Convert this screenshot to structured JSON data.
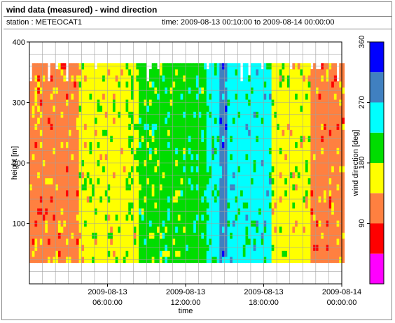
{
  "header": {
    "title": "wind data (measured) - wind direction",
    "station": "station : METEOCAT1",
    "time_range": "time: 2009-08-13 00:10:00 to 2009-08-14 00:00:00"
  },
  "chart_data": {
    "type": "heatmap",
    "title": "wind data (measured) - wind direction",
    "xlabel": "time",
    "ylabel": "height [m]",
    "colorbar_label": "wind direction [deg]",
    "xlim_hours": [
      0,
      24
    ],
    "ylim": [
      0,
      400
    ],
    "x_ticks": [
      {
        "h": 6,
        "label_date": "2009-08-13",
        "label_time": "06:00:00"
      },
      {
        "h": 12,
        "label_date": "2009-08-13",
        "label_time": "12:00:00"
      },
      {
        "h": 18,
        "label_date": "2009-08-13",
        "label_time": "18:00:00"
      },
      {
        "h": 24,
        "label_date": "2009-08-14",
        "label_time": "00:00:00"
      }
    ],
    "y_ticks": [
      100,
      200,
      300,
      400
    ],
    "height_range_m": [
      35,
      365
    ],
    "colorbar": {
      "ticks": [
        90,
        180,
        270,
        360
      ],
      "bins": [
        {
          "from": 0,
          "to": 45,
          "color": "#ff00ff"
        },
        {
          "from": 45,
          "to": 90,
          "color": "#ff0000"
        },
        {
          "from": 90,
          "to": 135,
          "color": "#ff8040"
        },
        {
          "from": 135,
          "to": 180,
          "color": "#ffff00"
        },
        {
          "from": 180,
          "to": 225,
          "color": "#00dd00"
        },
        {
          "from": 225,
          "to": 270,
          "color": "#00ffff"
        },
        {
          "from": 270,
          "to": 315,
          "color": "#4080c0"
        },
        {
          "from": 315,
          "to": 360,
          "color": "#0000ff"
        }
      ]
    },
    "segments": [
      {
        "t0": 0.0,
        "t1": 3.8,
        "deg": 115
      },
      {
        "t0": 3.8,
        "t1": 7.5,
        "deg": 160
      },
      {
        "t0": 7.5,
        "t1": 8.5,
        "deg": 170
      },
      {
        "t0": 8.5,
        "t1": 12.0,
        "deg": 200
      },
      {
        "t0": 12.0,
        "t1": 13.5,
        "deg": 210
      },
      {
        "t0": 13.5,
        "t1": 14.5,
        "deg": 240
      },
      {
        "t0": 14.5,
        "t1": 15.2,
        "deg": 290
      },
      {
        "t0": 15.2,
        "t1": 18.5,
        "deg": 245
      },
      {
        "t0": 18.5,
        "t1": 21.5,
        "deg": 160
      },
      {
        "t0": 21.5,
        "t1": 24.0,
        "deg": 115
      }
    ]
  }
}
